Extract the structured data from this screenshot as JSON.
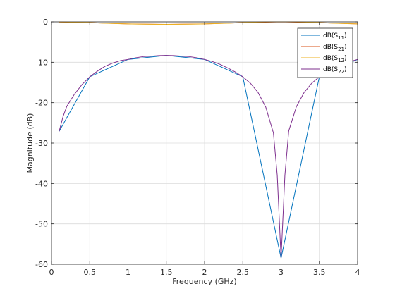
{
  "chart_data": {
    "type": "line",
    "xlabel": "Frequency (GHz)",
    "ylabel": "Magnitude (dB)",
    "xlim": [
      0,
      4
    ],
    "ylim": [
      -60,
      0
    ],
    "xticks": [
      0,
      0.5,
      1,
      1.5,
      2,
      2.5,
      3,
      3.5,
      4
    ],
    "yticks": [
      0,
      -10,
      -20,
      -30,
      -40,
      -50,
      -60
    ],
    "xtick_labels": [
      "0",
      "0.5",
      "1",
      "1.5",
      "2",
      "2.5",
      "3",
      "3.5",
      "4"
    ],
    "ytick_labels": [
      "0",
      "-10",
      "-20",
      "-30",
      "-40",
      "-50",
      "-60"
    ],
    "grid": true,
    "legend_position": "top-right",
    "series": [
      {
        "name": "dB(S11)",
        "label_main": "dB(S",
        "label_sub": "11",
        "label_close": ")",
        "color": "#0072BD",
        "x": [
          0.1,
          0.5,
          1.0,
          1.5,
          2.0,
          2.5,
          3.0,
          3.5,
          4.0
        ],
        "y": [
          -27.1,
          -13.6,
          -9.3,
          -8.3,
          -9.3,
          -13.6,
          -58.5,
          -13.6,
          -9.3
        ]
      },
      {
        "name": "dB(S21)",
        "label_main": "dB(S",
        "label_sub": "21",
        "label_close": ")",
        "color": "#D95319",
        "x": [
          0.1,
          0.5,
          1.0,
          1.5,
          2.0,
          2.5,
          3.0,
          3.5,
          4.0
        ],
        "y": [
          -0.05,
          -0.2,
          -0.5,
          -0.6,
          -0.5,
          -0.2,
          0.0,
          -0.2,
          -0.5
        ]
      },
      {
        "name": "dB(S12)",
        "label_main": "dB(S",
        "label_sub": "12",
        "label_close": ")",
        "color": "#EDB120",
        "x": [
          0.1,
          0.2,
          0.3,
          0.4,
          0.5,
          0.6,
          0.7,
          0.8,
          0.9,
          1.0,
          1.1,
          1.2,
          1.3,
          1.4,
          1.5,
          1.6,
          1.7,
          1.8,
          1.9,
          2.0,
          2.1,
          2.2,
          2.3,
          2.4,
          2.5,
          2.6,
          2.7,
          2.8,
          2.9,
          3.0,
          3.1,
          3.2,
          3.3,
          3.4,
          3.5,
          3.6,
          3.7,
          3.8,
          3.9,
          4.0
        ],
        "y": [
          -0.05,
          -0.06,
          -0.1,
          -0.15,
          -0.2,
          -0.27,
          -0.34,
          -0.4,
          -0.46,
          -0.5,
          -0.54,
          -0.57,
          -0.59,
          -0.6,
          -0.6,
          -0.6,
          -0.59,
          -0.57,
          -0.54,
          -0.5,
          -0.46,
          -0.4,
          -0.34,
          -0.27,
          -0.2,
          -0.13,
          -0.07,
          -0.03,
          -0.01,
          0.0,
          -0.01,
          -0.03,
          -0.07,
          -0.13,
          -0.2,
          -0.27,
          -0.34,
          -0.4,
          -0.46,
          -0.5
        ]
      },
      {
        "name": "dB(S22)",
        "label_main": "dB(S",
        "label_sub": "22",
        "label_close": ")",
        "color": "#7E2F8E",
        "x": [
          0.1,
          0.15,
          0.2,
          0.3,
          0.4,
          0.5,
          0.6,
          0.7,
          0.8,
          0.9,
          1.0,
          1.1,
          1.2,
          1.3,
          1.4,
          1.5,
          1.6,
          1.7,
          1.8,
          1.9,
          2.0,
          2.1,
          2.2,
          2.3,
          2.4,
          2.5,
          2.6,
          2.7,
          2.8,
          2.9,
          2.95,
          3.0,
          3.05,
          3.1,
          3.2,
          3.3,
          3.4,
          3.5,
          3.6,
          3.7,
          3.8,
          3.9,
          4.0
        ],
        "y": [
          -27.1,
          -23.5,
          -20.9,
          -17.9,
          -15.5,
          -13.6,
          -12.2,
          -11.0,
          -10.2,
          -9.6,
          -9.3,
          -8.9,
          -8.6,
          -8.5,
          -8.35,
          -8.3,
          -8.35,
          -8.5,
          -8.6,
          -8.9,
          -9.3,
          -9.8,
          -10.5,
          -11.4,
          -12.4,
          -13.6,
          -15.2,
          -17.5,
          -21.1,
          -27.5,
          -38.0,
          -58.5,
          -38.0,
          -27.0,
          -21.0,
          -17.5,
          -15.2,
          -13.6,
          -12.4,
          -11.4,
          -10.5,
          -9.8,
          -9.3
        ]
      }
    ]
  }
}
